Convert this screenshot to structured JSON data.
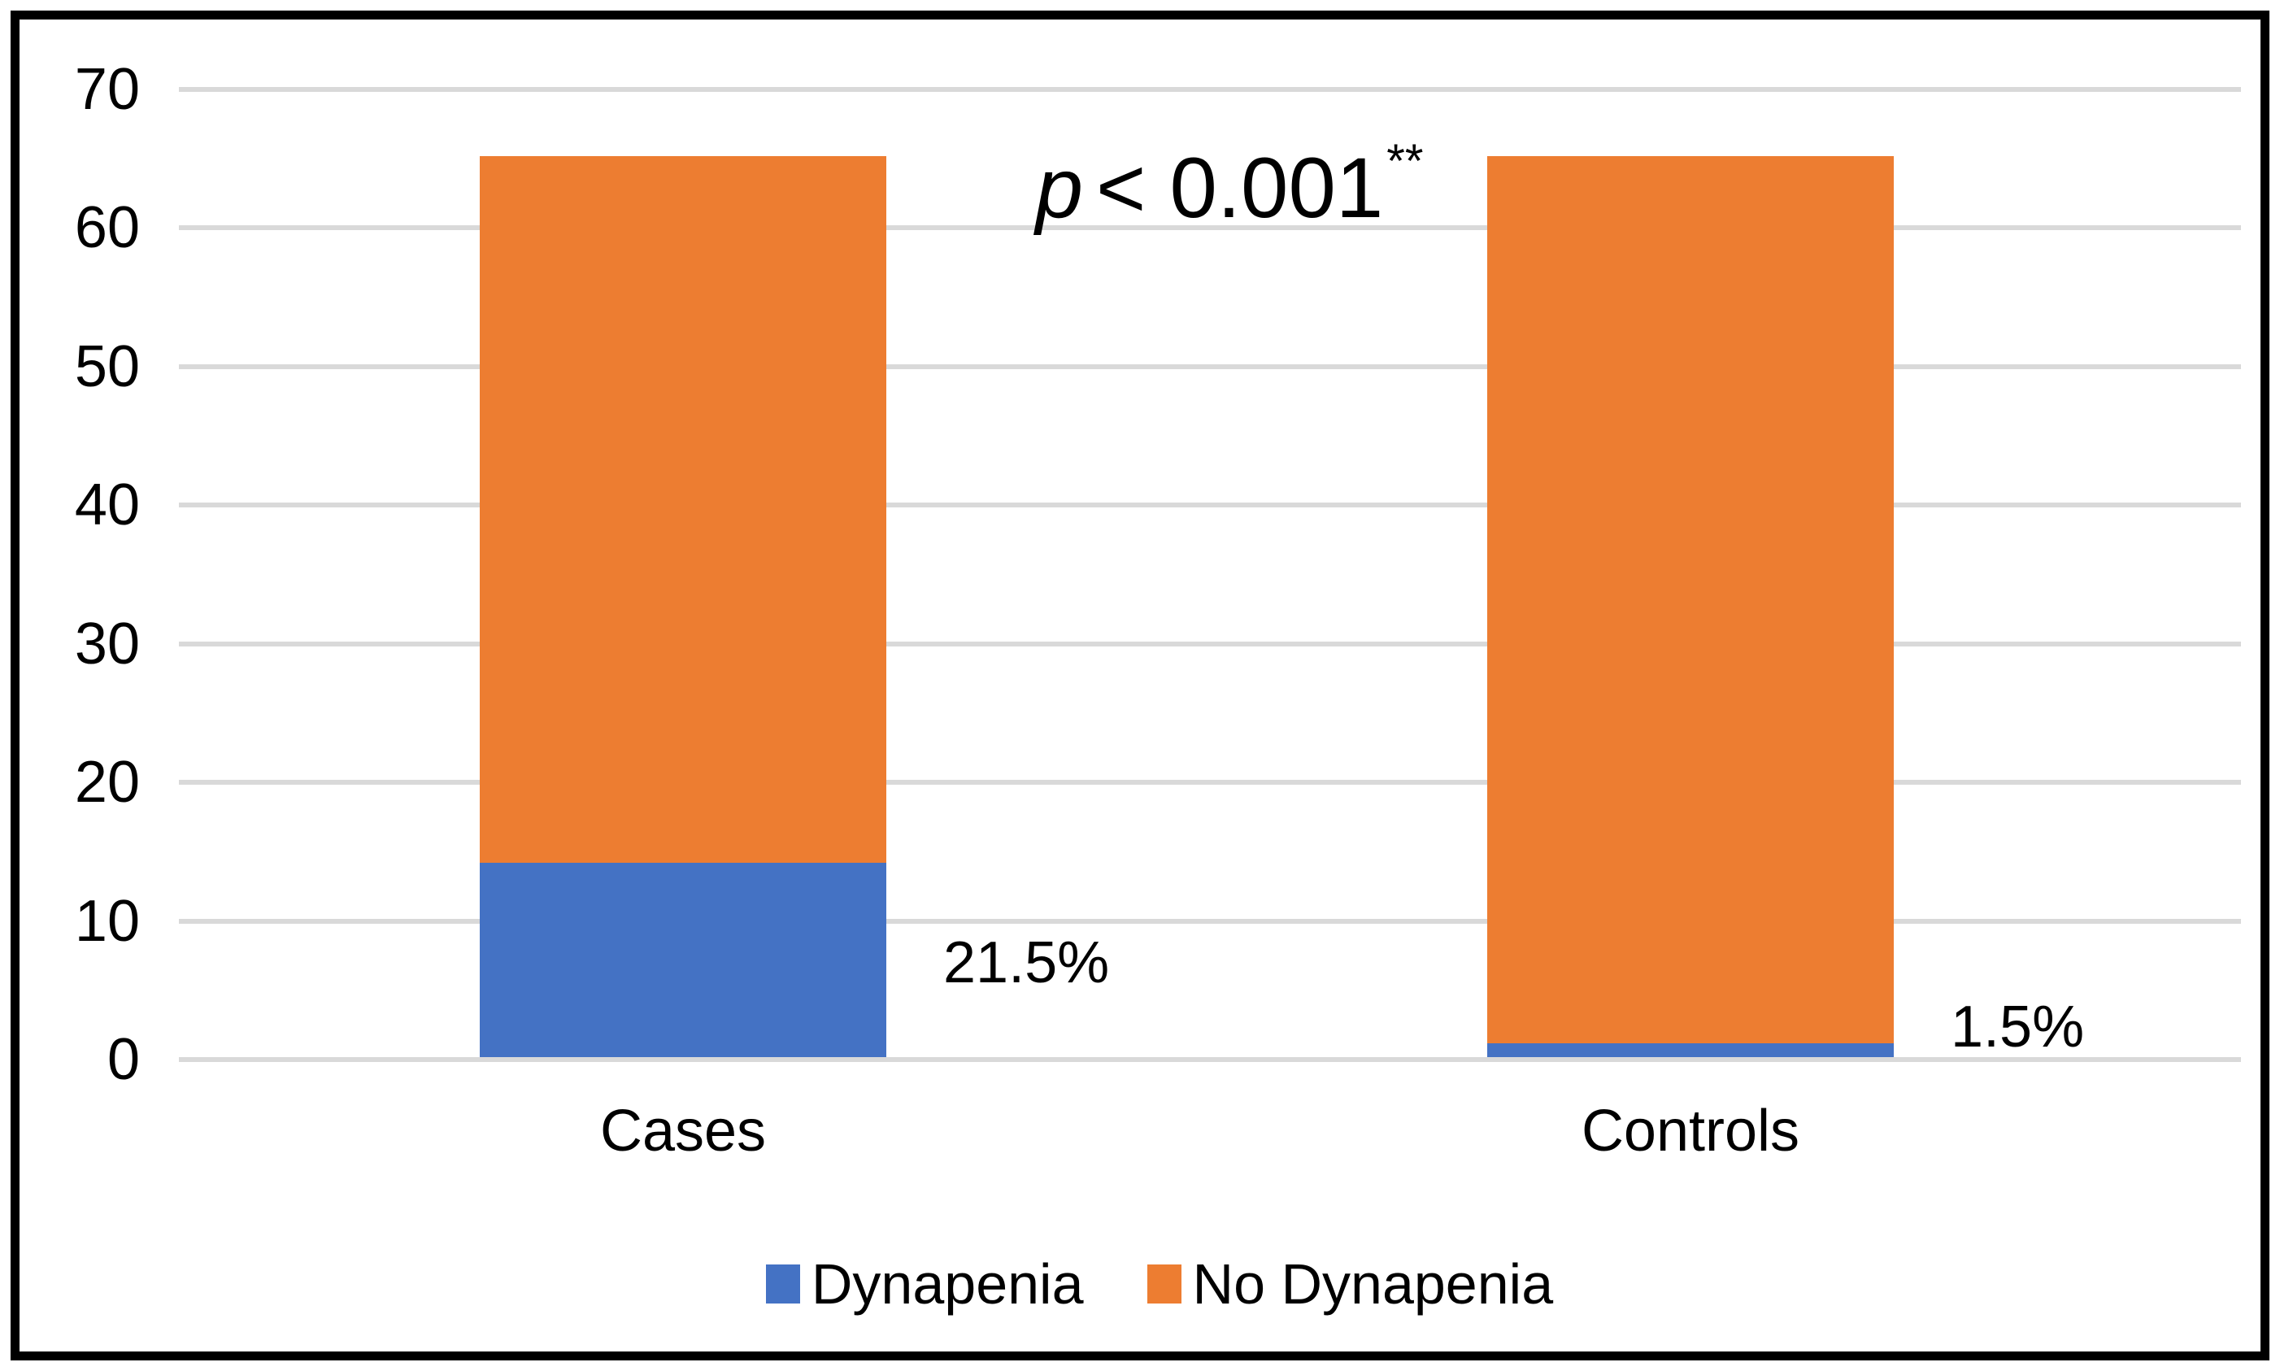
{
  "chart_data": {
    "type": "bar",
    "stacked": true,
    "title": "",
    "xlabel": "",
    "ylabel": "",
    "categories": [
      "Cases",
      "Controls"
    ],
    "series": [
      {
        "name": "Dynapenia",
        "color": "#4472C4",
        "values": [
          14,
          1
        ]
      },
      {
        "name": "No Dynapenia",
        "color": "#ED7D31",
        "values": [
          51,
          64
        ]
      }
    ],
    "bar_totals": [
      65,
      65
    ],
    "percent_labels": [
      "21.5%",
      "1.5%"
    ],
    "yticks": [
      0,
      10,
      20,
      30,
      40,
      50,
      60,
      70
    ],
    "ylim": [
      0,
      70
    ],
    "grid": true,
    "gridline_color": "#D9D9D9",
    "frame_color": "#000000",
    "legend_position": "bottom",
    "annotation": {
      "text": "p < 0.001**",
      "p_symbol": "p",
      "comparison": "< 0.001",
      "significance": "**"
    }
  }
}
